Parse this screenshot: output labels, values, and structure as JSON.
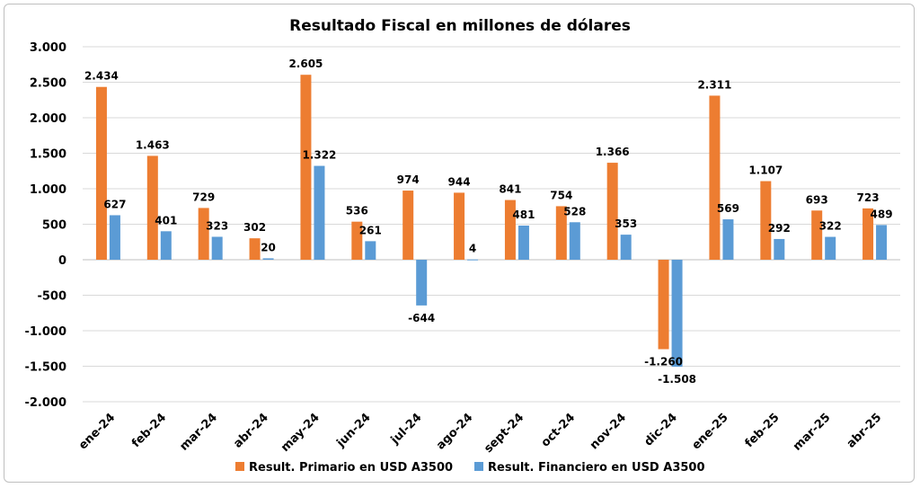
{
  "chart_data": {
    "type": "bar",
    "title": "Resultado Fiscal en millones de dólares",
    "xlabel": "",
    "ylabel": "",
    "ylim": [
      -2000,
      3000
    ],
    "yticks": [
      3000,
      2500,
      2000,
      1500,
      1000,
      500,
      0,
      -500,
      -1000,
      -1500,
      -2000
    ],
    "ytick_labels": [
      "3.000",
      "2.500",
      "2.000",
      "1.500",
      "1.000",
      "500",
      "0",
      "-500",
      "-1.000",
      "-1.500",
      "-2.000"
    ],
    "grid": true,
    "legend_position": "bottom",
    "categories": [
      "ene-24",
      "feb-24",
      "mar-24",
      "abr-24",
      "may-24",
      "jun-24",
      "jul-24",
      "ago-24",
      "sept-24",
      "oct-24",
      "nov-24",
      "dic-24",
      "ene-25",
      "feb-25",
      "mar-25",
      "abr-25"
    ],
    "series": [
      {
        "name": "Result. Primario en USD A3500",
        "color": "#ED7D31",
        "values": [
          2434,
          1463,
          729,
          302,
          2605,
          536,
          974,
          944,
          841,
          754,
          1366,
          -1260,
          2311,
          1107,
          693,
          723
        ],
        "labels": [
          "2.434",
          "1.463",
          "729",
          "302",
          "2.605",
          "536",
          "974",
          "944",
          "841",
          "754",
          "1.366",
          "-1.260",
          "2.311",
          "1.107",
          "693",
          "723"
        ]
      },
      {
        "name": "Result. Financiero en USD A3500",
        "color": "#5B9BD5",
        "values": [
          627,
          401,
          323,
          20,
          1322,
          261,
          -644,
          4,
          481,
          528,
          353,
          -1508,
          569,
          292,
          322,
          489
        ],
        "labels": [
          "627",
          "401",
          "323",
          "20",
          "1.322",
          "261",
          "-644",
          "4",
          "481",
          "528",
          "353",
          "-1.508",
          "569",
          "292",
          "322",
          "489"
        ]
      }
    ]
  }
}
